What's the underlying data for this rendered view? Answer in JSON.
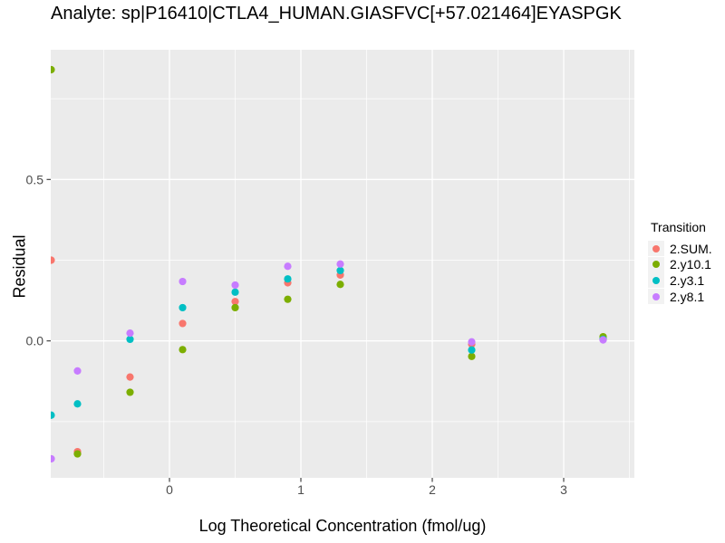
{
  "title": "Analyte: sp|P16410|CTLA4_HUMAN.GIASFVC[+57.021464]EYASPGK",
  "colors": {
    "panel_bg": "#EBEBEB",
    "gridline": "#FFFFFF",
    "tick_mark": "#333333",
    "tick_label": "#4D4D4D",
    "legend_key_bg": "#F2F2F2",
    "text": "#000000"
  },
  "chart_data": {
    "type": "scatter",
    "title": "Analyte: sp|P16410|CTLA4_HUMAN.GIASFVC[+57.021464]EYASPGK",
    "xlabel": "Log Theoretical Concentration (fmol/ug)",
    "ylabel": "Residual",
    "xlim": [
      -0.91,
      3.54
    ],
    "ylim": [
      -0.42,
      0.9
    ],
    "grid": true,
    "legend_position": "right",
    "legend_title": "Transition",
    "x_ticks": [
      {
        "v": 0,
        "label": "0"
      },
      {
        "v": 1,
        "label": "1"
      },
      {
        "v": 2,
        "label": "2"
      },
      {
        "v": 3,
        "label": "3"
      }
    ],
    "y_ticks": [
      {
        "v": 0.5,
        "label": "0.5"
      },
      {
        "v": 0.0,
        "label": "0.0"
      }
    ],
    "x_minor": [
      -0.5,
      0.5,
      1.5,
      2.5,
      3.5
    ],
    "y_minor": [
      -0.25,
      0.25,
      0.75
    ],
    "series": [
      {
        "name": "2.SUM.",
        "color": "#F8766D",
        "points": [
          [
            -0.9,
            0.25
          ],
          [
            -0.7,
            -0.343
          ],
          [
            -0.3,
            -0.112
          ],
          [
            0.1,
            0.054
          ],
          [
            0.5,
            0.122
          ],
          [
            0.9,
            0.18
          ],
          [
            1.3,
            0.204
          ],
          [
            2.3,
            -0.01
          ],
          [
            3.3,
            0.005
          ]
        ]
      },
      {
        "name": "2.y10.1",
        "color": "#7CAE00",
        "points": [
          [
            -0.9,
            0.84
          ],
          [
            -0.7,
            -0.35
          ],
          [
            -0.3,
            -0.159
          ],
          [
            0.1,
            -0.027
          ],
          [
            0.5,
            0.103
          ],
          [
            0.9,
            0.129
          ],
          [
            1.3,
            0.175
          ],
          [
            2.3,
            -0.048
          ],
          [
            3.3,
            0.013
          ]
        ]
      },
      {
        "name": "2.y3.1",
        "color": "#00BFC4",
        "points": [
          [
            -0.9,
            -0.23
          ],
          [
            -0.7,
            -0.195
          ],
          [
            -0.3,
            0.005
          ],
          [
            0.1,
            0.103
          ],
          [
            0.5,
            0.151
          ],
          [
            0.9,
            0.192
          ],
          [
            1.3,
            0.218
          ],
          [
            2.3,
            -0.028
          ],
          [
            3.3,
            0.005
          ]
        ]
      },
      {
        "name": "2.y8.1",
        "color": "#C77CFF",
        "points": [
          [
            -0.9,
            -0.365
          ],
          [
            -0.7,
            -0.093
          ],
          [
            -0.3,
            0.024
          ],
          [
            0.1,
            0.184
          ],
          [
            0.5,
            0.173
          ],
          [
            0.9,
            0.231
          ],
          [
            1.3,
            0.238
          ],
          [
            2.3,
            -0.003
          ],
          [
            3.3,
            0.003
          ]
        ]
      }
    ]
  }
}
